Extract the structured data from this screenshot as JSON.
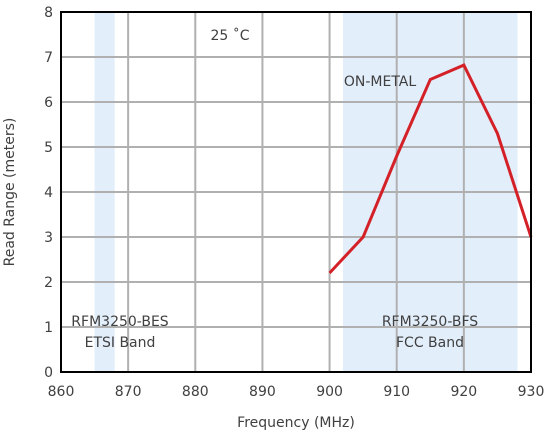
{
  "chart_data": {
    "type": "line",
    "title": "",
    "xlabel": "Frequency (MHz)",
    "ylabel": "Read Range (meters)",
    "xlim": [
      860,
      930
    ],
    "ylim": [
      0,
      8
    ],
    "x_ticks": [
      860,
      870,
      880,
      890,
      900,
      910,
      920,
      930
    ],
    "y_ticks": [
      0,
      1,
      2,
      3,
      4,
      5,
      6,
      7,
      8
    ],
    "grid": true,
    "series": [
      {
        "name": "ON-METAL",
        "color": "#d42027",
        "x": [
          900,
          905,
          910,
          915,
          920,
          925,
          930
        ],
        "y": [
          2.2,
          3.0,
          4.8,
          6.5,
          6.82,
          5.3,
          3.0
        ]
      }
    ],
    "bands": [
      {
        "label_line1": "RFM3250-BES",
        "label_line2": "ETSI Band",
        "x_start": 865,
        "x_end": 868,
        "color": "#e3eefb"
      },
      {
        "label_line1": "RFM3250-BFS",
        "label_line2": "FCC Band",
        "x_start": 902,
        "x_end": 928,
        "color": "#e3eefb"
      }
    ],
    "annotations": {
      "temperature": "25 ˚C",
      "series_label": "ON-METAL"
    }
  }
}
